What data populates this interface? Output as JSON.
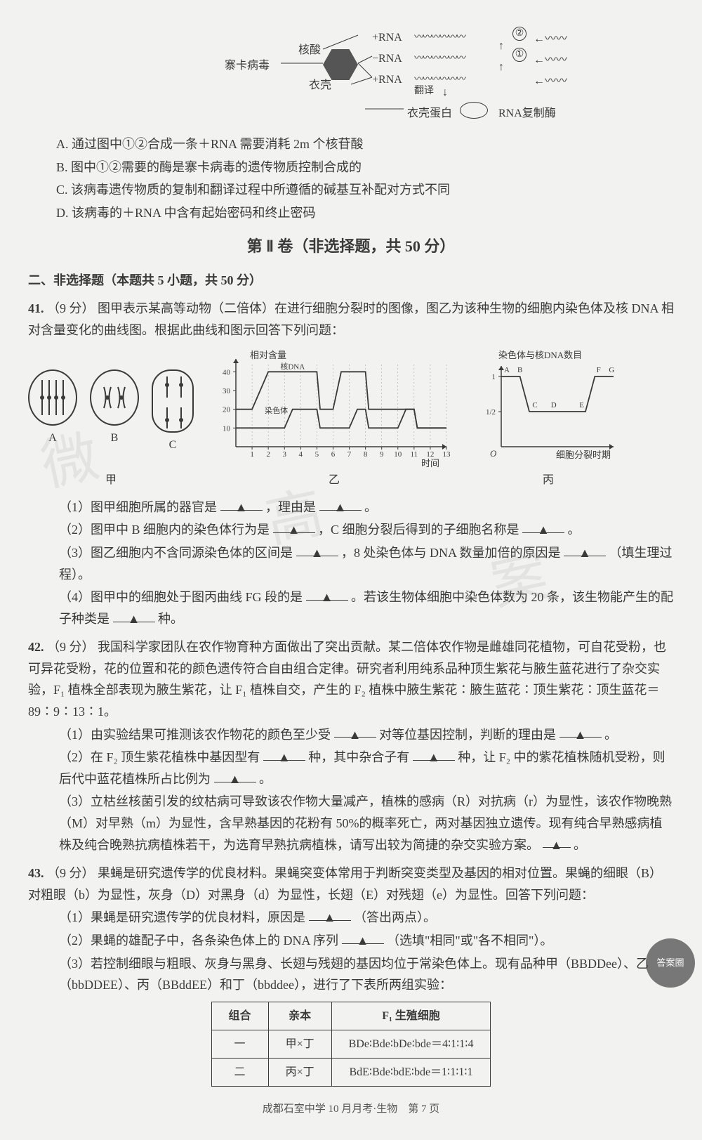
{
  "top_diagram": {
    "labels": {
      "virus": "寨卡病毒",
      "nucleic_acid": "核酸",
      "coat": "衣壳",
      "plus_rna_1": "+RNA",
      "minus_rna": "−RNA",
      "plus_rna_2": "+RNA",
      "translation": "翻译",
      "coat_protein": "衣壳蛋白",
      "rna_rep_enzyme": "RNA复制酶",
      "circ1": "①",
      "circ2": "②",
      "circ_ellipse": "◯"
    }
  },
  "options": {
    "A": "通过图中①②合成一条＋RNA 需要消耗 2m 个核苷酸",
    "B": "图中①②需要的酶是寨卡病毒的遗传物质控制合成的",
    "C": "该病毒遗传物质的复制和翻译过程中所遵循的碱基互补配对方式不同",
    "D": "该病毒的＋RNA 中含有起始密码和终止密码"
  },
  "section2_title": "第 Ⅱ 卷（非选择题，共 50 分）",
  "part2_heading": "二、非选择题（本题共 5 小题，共 50 分）",
  "q41": {
    "num": "41.",
    "points": "（9 分）",
    "stem": "图甲表示某高等动物（二倍体）在进行细胞分裂时的图像，图乙为该种生物的细胞内染色体及核 DNA 相对含量变化的曲线图。根据此曲线和图示回答下列问题：",
    "cell_labels": [
      "A",
      "B",
      "C"
    ],
    "fig_labels": {
      "jia": "甲",
      "yi": "乙",
      "bing": "丙"
    },
    "chart_yi": {
      "y_title": "相对含量",
      "series1_label": "核DNA",
      "series2_label": "染色体",
      "x_label": "时间",
      "y_ticks": [
        10,
        20,
        30,
        40
      ],
      "x_ticks": [
        1,
        2,
        3,
        4,
        5,
        6,
        7,
        8,
        9,
        10,
        11,
        12,
        13
      ],
      "dna_line": [
        [
          0,
          20
        ],
        [
          1,
          20
        ],
        [
          2,
          40
        ],
        [
          5,
          40
        ],
        [
          5.2,
          20
        ],
        [
          6,
          20
        ],
        [
          6.5,
          40
        ],
        [
          8,
          40
        ],
        [
          8.2,
          20
        ],
        [
          9,
          20
        ],
        [
          9.5,
          20
        ],
        [
          11,
          20
        ],
        [
          11.2,
          10
        ],
        [
          13,
          10
        ]
      ],
      "chrom_line": [
        [
          0,
          10
        ],
        [
          3,
          10
        ],
        [
          3.5,
          20
        ],
        [
          5,
          20
        ],
        [
          5.2,
          10
        ],
        [
          7,
          10
        ],
        [
          7.5,
          20
        ],
        [
          8,
          20
        ],
        [
          8.2,
          10
        ],
        [
          10,
          10
        ],
        [
          10.5,
          20
        ],
        [
          11,
          20
        ],
        [
          11.2,
          10
        ],
        [
          13,
          10
        ]
      ],
      "colors": {
        "axis": "#3a3a3a",
        "line": "#3a3a3a",
        "grid": "#999"
      }
    },
    "chart_bing": {
      "y_title": "染色体与核DNA数目",
      "x_label": "细胞分裂时期",
      "y_ticks_labels": [
        "1/2",
        "1"
      ],
      "y_ticks_vals": [
        0.5,
        1
      ],
      "x_letters": [
        "A",
        "B",
        "C",
        "D",
        "E",
        "F",
        "G"
      ],
      "line": [
        [
          0,
          1
        ],
        [
          1,
          1
        ],
        [
          1.5,
          0.5
        ],
        [
          2.5,
          0.5
        ],
        [
          3.5,
          0.5
        ],
        [
          4.5,
          0.5
        ],
        [
          5,
          1
        ],
        [
          6,
          1
        ]
      ]
    },
    "subs": {
      "s1": "（1）图甲细胞所属的器官是",
      "s1b": "，理由是",
      "s1c": "。",
      "s2": "（2）图甲中 B 细胞内的染色体行为是",
      "s2b": "，C 细胞分裂后得到的子细胞名称是",
      "s2c": "。",
      "s3": "（3）图乙细胞内不含同源染色体的区间是",
      "s3b": "，8 处染色体与 DNA 数量加倍的原因是",
      "s3c": "（填生理过程）。",
      "s4": "（4）图甲中的细胞处于图丙曲线 FG 段的是",
      "s4b": "。若该生物体细胞中染色体数为 20 条，该生物能产生的配子种类是",
      "s4c": "种。"
    }
  },
  "q42": {
    "num": "42.",
    "points": "（9 分）",
    "stem": "我国科学家团队在农作物育种方面做出了突出贡献。某二倍体农作物是雌雄同花植物，可自花受粉，也可异花受粉，花的位置和花的颜色遗传符合自由组合定律。研究者利用纯系品种顶生紫花与腋生蓝花进行了杂交实验，F₁ 植株全部表现为腋生紫花，让 F₁ 植株自交，产生的 F₂ 植株中腋生紫花∶腋生蓝花∶顶生紫花∶顶生蓝花＝89∶9∶13∶1。",
    "subs": {
      "s1a": "（1）由实验结果可推测该农作物花的颜色至少受",
      "s1b": "对等位基因控制，判断的理由是",
      "s1c": "。",
      "s2a": "（2）在 F₂ 顶生紫花植株中基因型有",
      "s2b": "种，其中杂合子有",
      "s2c": "种，让 F₂ 中的紫花植株随机受粉，则后代中蓝花植株所占比例为",
      "s2d": "。",
      "s3": "（3）立枯丝核菌引发的纹枯病可导致该农作物大量减产，植株的感病（R）对抗病（r）为显性，该农作物晚熟（M）对早熟（m）为显性，含早熟基因的花粉有 50%的概率死亡，两对基因独立遗传。现有纯合早熟感病植株及纯合晚熟抗病植株若干，为选育早熟抗病植株，请写出较为简捷的杂交实验方案。",
      "s3b": "。"
    }
  },
  "q43": {
    "num": "43.",
    "points": "（9 分）",
    "stem": "果蝇是研究遗传学的优良材料。果蝇突变体常用于判断突变类型及基因的相对位置。果蝇的细眼（B）对粗眼（b）为显性，灰身（D）对黑身（d）为显性，长翅（E）对残翅（e）为显性。回答下列问题：",
    "subs": {
      "s1a": "（1）果蝇是研究遗传学的优良材料，原因是",
      "s1b": "（答出两点）。",
      "s2a": "（2）果蝇的雄配子中，各条染色体上的 DNA 序列",
      "s2b": "（选填\"相同\"或\"各不相同\"）。",
      "s3": "（3）若控制细眼与粗眼、灰身与黑身、长翅与残翅的基因均位于常染色体上。现有品种甲（BBDDee）、乙（bbDDEE）、丙（BBddEE）和丁（bbddee），进行了下表所两组实验："
    },
    "table": {
      "headers": [
        "组合",
        "亲本",
        "F₁ 生殖细胞"
      ],
      "rows": [
        [
          "一",
          "甲×丁",
          "BDe∶Bde∶bDe∶bde＝4∶1∶1∶4"
        ],
        [
          "二",
          "丙×丁",
          "BdE∶Bde∶bdE∶bde＝1∶1∶1∶1"
        ]
      ]
    }
  },
  "watermarks": [
    "微",
    "高",
    "案"
  ],
  "footer": "成都石室中学 10 月月考·生物　第 7 页",
  "badge": "答案圈"
}
